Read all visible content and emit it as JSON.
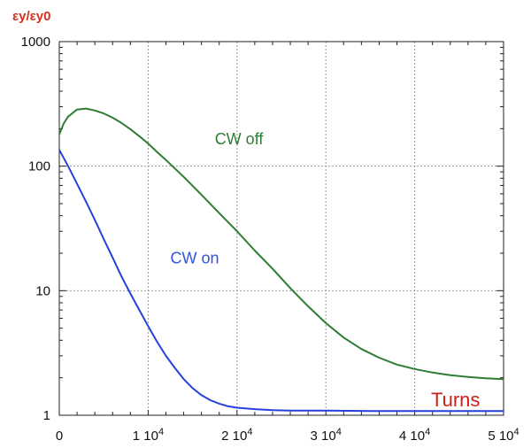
{
  "chart_data": {
    "type": "line",
    "ylabel": "εy/εy0",
    "xlabel": "Turns",
    "yscale": "log",
    "xlim": [
      0,
      50000
    ],
    "ylim": [
      1,
      1000
    ],
    "grid": true,
    "x_ticks": [
      {
        "value": 0,
        "base": "0",
        "exp": ""
      },
      {
        "value": 10000,
        "base": "1 10",
        "exp": "4"
      },
      {
        "value": 20000,
        "base": "2 10",
        "exp": "4"
      },
      {
        "value": 30000,
        "base": "3 10",
        "exp": "4"
      },
      {
        "value": 40000,
        "base": "4 10",
        "exp": "4"
      },
      {
        "value": 50000,
        "base": "5 10",
        "exp": "4"
      }
    ],
    "y_ticks": [
      {
        "value": 1,
        "label": "1"
      },
      {
        "value": 10,
        "label": "10"
      },
      {
        "value": 100,
        "label": "100"
      },
      {
        "value": 1000,
        "label": "1000"
      }
    ],
    "series": [
      {
        "name": "CW off",
        "color": "#2e7d32",
        "x": [
          0,
          500,
          1000,
          2000,
          3000,
          4000,
          5000,
          6000,
          7000,
          8000,
          9000,
          10000,
          11000,
          12000,
          14000,
          16000,
          18000,
          20000,
          22000,
          24000,
          26000,
          28000,
          30000,
          32000,
          34000,
          36000,
          38000,
          40000,
          42000,
          44000,
          46000,
          48000,
          50000
        ],
        "y": [
          180,
          220,
          250,
          285,
          290,
          280,
          265,
          245,
          222,
          198,
          174,
          152,
          130,
          112,
          82,
          59,
          42,
          30,
          21,
          15,
          10.5,
          7.5,
          5.5,
          4.2,
          3.4,
          2.9,
          2.55,
          2.35,
          2.2,
          2.1,
          2.03,
          1.98,
          1.95
        ]
      },
      {
        "name": "CW on",
        "color": "#2640dc",
        "x": [
          0,
          1000,
          2000,
          3000,
          4000,
          5000,
          6000,
          7000,
          8000,
          9000,
          10000,
          11000,
          12000,
          13000,
          14000,
          15000,
          16000,
          17000,
          18000,
          19000,
          20000,
          22000,
          24000,
          26000,
          28000,
          30000,
          35000,
          40000,
          45000,
          50000
        ],
        "y": [
          135,
          100,
          72,
          52,
          37,
          26,
          18.5,
          13,
          9.5,
          7,
          5.2,
          3.9,
          3.0,
          2.4,
          1.95,
          1.65,
          1.45,
          1.32,
          1.24,
          1.18,
          1.15,
          1.12,
          1.1,
          1.09,
          1.09,
          1.09,
          1.08,
          1.08,
          1.08,
          1.08
        ]
      }
    ],
    "annotations": [
      {
        "text": "CW off",
        "color": "#2e7d32",
        "x": 17500,
        "y": 150
      },
      {
        "text": "CW on",
        "color": "#2f55e0",
        "x": 12500,
        "y": 16.5
      }
    ]
  }
}
